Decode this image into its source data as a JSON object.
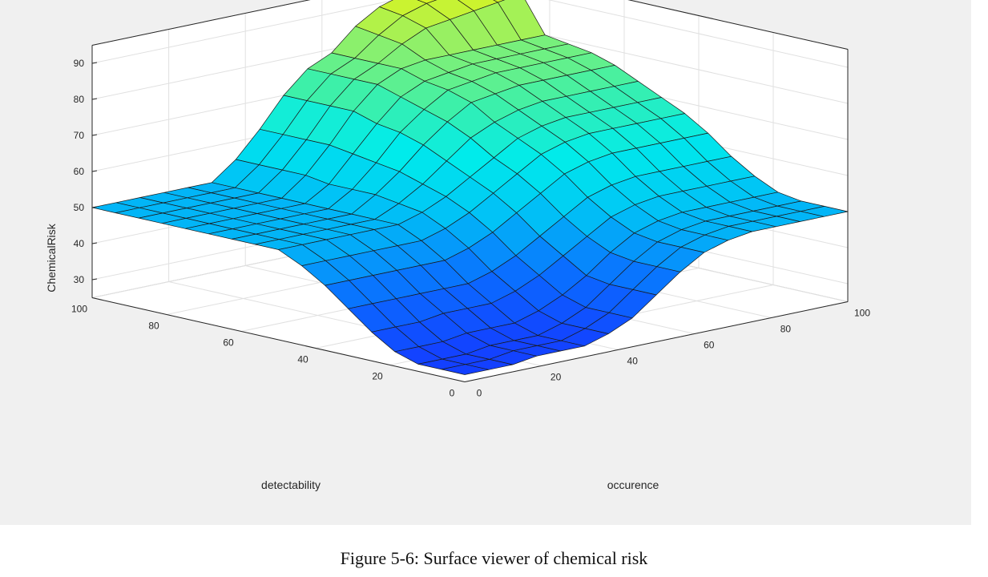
{
  "caption": "Figure 5-6: Surface viewer of chemical risk",
  "chart_data": {
    "type": "surface",
    "xlabel": "occurence",
    "ylabel": "detectability",
    "zlabel": "ChemicalRisk",
    "xlim": [
      0,
      100
    ],
    "ylim": [
      0,
      100
    ],
    "zlim": [
      25,
      95
    ],
    "x_ticks": [
      0,
      20,
      40,
      60,
      80,
      100
    ],
    "y_ticks": [
      0,
      20,
      40,
      60,
      80,
      100
    ],
    "z_ticks": [
      30,
      40,
      50,
      60,
      70,
      80,
      90
    ],
    "grid": true,
    "colormap": "parula",
    "grid_x": [
      0,
      6.25,
      12.5,
      18.75,
      25,
      31.25,
      37.5,
      43.75,
      50,
      56.25,
      62.5,
      68.75,
      75,
      81.25,
      87.5,
      93.75,
      100
    ],
    "grid_y": [
      0,
      6.25,
      12.5,
      18.75,
      25,
      31.25,
      37.5,
      43.75,
      50,
      56.25,
      62.5,
      68.75,
      75,
      81.25,
      87.5,
      93.75,
      100
    ],
    "z_rows_by_detectability": [
      [
        27,
        27,
        27,
        28,
        28,
        28,
        30,
        33,
        38,
        43,
        47,
        49,
        50,
        50,
        50,
        50,
        50
      ],
      [
        27,
        27,
        27,
        28,
        28,
        28,
        30,
        33,
        38,
        43,
        47,
        49,
        50,
        50,
        50,
        50,
        50
      ],
      [
        27,
        27,
        27,
        28,
        28,
        28,
        30,
        33,
        38,
        43,
        47,
        49,
        50,
        50,
        50,
        50,
        50
      ],
      [
        29,
        29,
        29,
        30,
        30,
        30,
        32,
        35,
        39,
        44,
        48,
        50,
        51,
        51,
        51,
        51,
        51
      ],
      [
        33,
        33,
        33,
        34,
        34,
        34,
        36,
        39,
        43,
        47,
        51,
        53,
        54,
        54,
        54,
        54,
        54
      ],
      [
        38,
        38,
        38,
        38,
        38,
        38,
        40,
        43,
        47,
        51,
        55,
        57,
        58,
        58,
        58,
        58,
        58
      ],
      [
        43,
        43,
        43,
        43,
        43,
        43,
        45,
        48,
        52,
        56,
        60,
        62,
        63,
        63,
        63,
        63,
        63
      ],
      [
        47,
        47,
        47,
        47,
        47,
        47,
        49,
        52,
        56,
        60,
        64,
        66,
        67,
        67,
        67,
        67,
        67
      ],
      [
        50,
        50,
        50,
        50,
        50,
        50,
        52,
        55,
        59,
        63,
        67,
        69,
        70,
        70,
        70,
        70,
        70
      ],
      [
        50,
        50,
        50,
        50,
        50,
        50,
        53,
        57,
        62,
        67,
        70,
        72,
        73,
        73,
        73,
        73,
        73
      ],
      [
        50,
        50,
        50,
        50,
        50,
        50,
        54,
        59,
        65,
        70,
        74,
        75,
        76,
        76,
        76,
        76,
        76
      ],
      [
        50,
        50,
        50,
        50,
        50,
        50,
        54,
        60,
        67,
        72,
        76,
        77,
        78,
        78,
        78,
        78,
        78
      ],
      [
        50,
        50,
        50,
        50,
        50,
        50,
        54,
        61,
        68,
        74,
        77,
        78,
        79,
        79,
        79,
        79,
        79
      ],
      [
        50,
        50,
        50,
        50,
        50,
        50,
        55,
        62,
        70,
        76,
        79,
        80,
        80,
        80,
        80,
        80,
        80
      ],
      [
        50,
        50,
        50,
        50,
        50,
        50,
        55,
        62,
        70,
        76,
        79,
        83,
        86,
        87,
        88,
        89,
        90
      ],
      [
        50,
        50,
        50,
        50,
        50,
        50,
        55,
        62,
        70,
        76,
        79,
        84,
        88,
        90,
        91,
        91,
        92
      ],
      [
        50,
        50,
        50,
        50,
        50,
        50,
        55,
        62,
        70,
        76,
        79,
        85,
        89,
        91,
        92,
        92,
        93
      ]
    ]
  }
}
